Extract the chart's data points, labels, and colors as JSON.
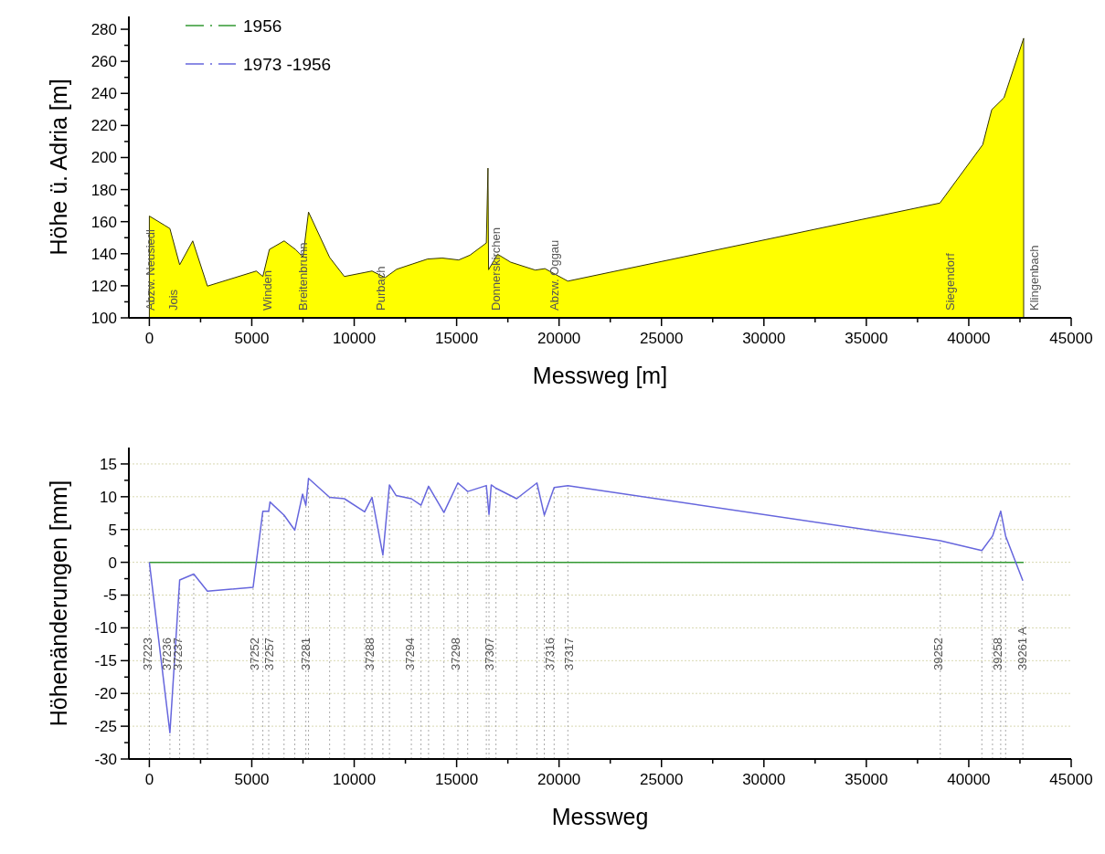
{
  "chart_data": [
    {
      "type": "area",
      "xlabel": "Messweg [m]",
      "ylabel": "Höhe ü. Adria [m]",
      "x": [
        0,
        762,
        1003,
        1480,
        2118,
        2835,
        5220,
        5540,
        5860,
        6580,
        7130,
        7500,
        7770,
        8800,
        9520,
        10870,
        11510,
        12070,
        12870,
        13580,
        14300,
        15100,
        15650,
        16450,
        16530,
        16560,
        17000,
        17640,
        18840,
        19310,
        19870,
        20430,
        38590,
        40680,
        41120,
        41720,
        42680
      ],
      "series": [
        {
          "color": "#ffff00",
          "values": [
            163.5,
            157.6,
            155.7,
            133.1,
            148,
            119.8,
            129.2,
            125.8,
            142.7,
            148,
            142.7,
            138,
            166,
            137.7,
            125.8,
            129.2,
            125.1,
            130.3,
            133.7,
            136.7,
            137.3,
            136.1,
            139.1,
            146.7,
            193.4,
            130,
            139.7,
            134.7,
            129.8,
            130.7,
            126.8,
            122.9,
            171.6,
            208,
            229.8,
            237.3,
            274.4
          ]
        }
      ],
      "xlim": [
        -1000,
        45000
      ],
      "ylim": [
        100,
        288
      ],
      "xticks": [
        0,
        {
          "value": 2500,
          "label": null
        },
        5000,
        {
          "value": 7500,
          "label": null
        },
        10000,
        {
          "value": 12500,
          "label": null
        },
        15000,
        {
          "value": 17500,
          "label": null
        },
        20000,
        {
          "value": 22500,
          "label": null
        },
        25000,
        {
          "value": 27500,
          "label": null
        },
        30000,
        {
          "value": 32500,
          "label": null
        },
        35000,
        {
          "value": 37500,
          "label": null
        },
        40000,
        {
          "value": 42500,
          "label": null
        },
        45000
      ],
      "yticks": [
        100,
        {
          "value": 110,
          "label": null
        },
        120,
        {
          "value": 130,
          "label": null
        },
        140,
        {
          "value": 150,
          "label": null
        },
        160,
        {
          "value": 170,
          "label": null
        },
        180,
        {
          "value": 190,
          "label": null
        },
        200,
        {
          "value": 210,
          "label": null
        },
        220,
        {
          "value": 230,
          "label": null
        },
        240,
        {
          "value": 250,
          "label": null
        },
        260,
        {
          "value": 270,
          "label": null
        },
        280
      ],
      "annotations": [
        "Abzw. Neusiedl",
        "Jois",
        "Winden",
        "Breitenbrunn",
        "Purbach",
        "Donnerskirchen",
        "Abzw. Oggau",
        "Siegendorf",
        "Klingenbach"
      ]
    },
    {
      "type": "line",
      "xlabel": "Messweg",
      "ylabel": "Höhenänderungen [mm]",
      "legend": "top left",
      "grid": "y",
      "line_style": "solid",
      "series": [
        {
          "name": "1956",
          "color": "#339933",
          "x": [
            0,
            42680
          ],
          "values": [
            0,
            0
          ]
        },
        {
          "name": "1973 -1956",
          "color": "#6666dd",
          "x": [
            0,
            1003,
            1480,
            2167,
            2835,
            5065,
            5540,
            5827,
            5890,
            6575,
            7100,
            7480,
            7640,
            7770,
            8800,
            9520,
            10510,
            10870,
            11400,
            11720,
            12040,
            12790,
            13260,
            13630,
            14380,
            15060,
            15540,
            16450,
            16580,
            16690,
            16920,
            17930,
            18920,
            19280,
            19760,
            20430,
            38610,
            40640,
            41160,
            41560,
            41800,
            42640
          ],
          "values": [
            0,
            -26,
            -2.7,
            -1.8,
            -4.4,
            -3.8,
            7.8,
            7.8,
            9.2,
            7.2,
            4.9,
            10.4,
            8.7,
            12.8,
            9.9,
            9.7,
            7.7,
            9.9,
            1.1,
            11.8,
            10.2,
            9.7,
            8.7,
            11.6,
            7.6,
            12.1,
            10.8,
            11.7,
            7.3,
            11.8,
            11.3,
            9.7,
            12.1,
            7.2,
            11.4,
            11.7,
            3.3,
            1.8,
            4,
            7.8,
            4,
            -2.8
          ]
        }
      ],
      "xlim": [
        -1000,
        45000
      ],
      "ylim": [
        -30,
        17.5
      ],
      "xticks": [
        0,
        {
          "value": 2500,
          "label": null
        },
        5000,
        {
          "value": 7500,
          "label": null
        },
        10000,
        {
          "value": 12500,
          "label": null
        },
        15000,
        {
          "value": 17500,
          "label": null
        },
        20000,
        {
          "value": 22500,
          "label": null
        },
        25000,
        {
          "value": 27500,
          "label": null
        },
        30000,
        {
          "value": 32500,
          "label": null
        },
        35000,
        {
          "value": 37500,
          "label": null
        },
        40000,
        {
          "value": 42500,
          "label": null
        },
        45000
      ],
      "yticks": [
        -30,
        {
          "value": -27.5,
          "label": null
        },
        -25,
        {
          "value": -22.5,
          "label": null
        },
        -20,
        {
          "value": -17.5,
          "label": null
        },
        -15,
        {
          "value": -12.5,
          "label": null
        },
        -10,
        {
          "value": -7.5,
          "label": null
        },
        -5,
        {
          "value": -2.5,
          "label": null
        },
        0,
        {
          "value": 2.5,
          "label": null
        },
        5,
        {
          "value": 7.5,
          "label": null
        },
        10,
        {
          "value": 12.5,
          "label": null
        },
        15
      ],
      "ref_lines": [
        {
          "axis": "x",
          "value": 0,
          "color": "#aaaaaa",
          "line_style": "dotted"
        },
        {
          "axis": "x",
          "value": 1003,
          "color": "#aaaaaa",
          "line_style": "dotted"
        },
        {
          "axis": "x",
          "value": 1480,
          "color": "#aaaaaa",
          "line_style": "dotted"
        },
        {
          "axis": "x",
          "value": 2167,
          "color": "#aaaaaa",
          "line_style": "dotted"
        },
        {
          "axis": "x",
          "value": 2835,
          "color": "#aaaaaa",
          "line_style": "dotted"
        },
        {
          "axis": "x",
          "value": 5065,
          "color": "#aaaaaa",
          "line_style": "dotted"
        },
        {
          "axis": "x",
          "value": 5540,
          "color": "#aaaaaa",
          "line_style": "dotted"
        },
        {
          "axis": "x",
          "value": 5827,
          "color": "#aaaaaa",
          "line_style": "dotted"
        },
        {
          "axis": "x",
          "value": 6575,
          "color": "#aaaaaa",
          "line_style": "dotted"
        },
        {
          "axis": "x",
          "value": 7100,
          "color": "#aaaaaa",
          "line_style": "dotted"
        },
        {
          "axis": "x",
          "value": 7640,
          "color": "#aaaaaa",
          "line_style": "dotted"
        },
        {
          "axis": "x",
          "value": 7770,
          "color": "#aaaaaa",
          "line_style": "dotted"
        },
        {
          "axis": "x",
          "value": 8800,
          "color": "#aaaaaa",
          "line_style": "dotted"
        },
        {
          "axis": "x",
          "value": 9520,
          "color": "#aaaaaa",
          "line_style": "dotted"
        },
        {
          "axis": "x",
          "value": 10510,
          "color": "#aaaaaa",
          "line_style": "dotted"
        },
        {
          "axis": "x",
          "value": 10870,
          "color": "#aaaaaa",
          "line_style": "dotted"
        },
        {
          "axis": "x",
          "value": 11400,
          "color": "#aaaaaa",
          "line_style": "dotted"
        },
        {
          "axis": "x",
          "value": 11720,
          "color": "#aaaaaa",
          "line_style": "dotted"
        },
        {
          "axis": "x",
          "value": 12790,
          "color": "#aaaaaa",
          "line_style": "dotted"
        },
        {
          "axis": "x",
          "value": 13260,
          "color": "#aaaaaa",
          "line_style": "dotted"
        },
        {
          "axis": "x",
          "value": 13630,
          "color": "#aaaaaa",
          "line_style": "dotted"
        },
        {
          "axis": "x",
          "value": 14380,
          "color": "#aaaaaa",
          "line_style": "dotted"
        },
        {
          "axis": "x",
          "value": 15060,
          "color": "#aaaaaa",
          "line_style": "dotted"
        },
        {
          "axis": "x",
          "value": 15540,
          "color": "#aaaaaa",
          "line_style": "dotted"
        },
        {
          "axis": "x",
          "value": 16450,
          "color": "#aaaaaa",
          "line_style": "dotted"
        },
        {
          "axis": "x",
          "value": 16580,
          "color": "#aaaaaa",
          "line_style": "dotted"
        },
        {
          "axis": "x",
          "value": 16920,
          "color": "#aaaaaa",
          "line_style": "dotted"
        },
        {
          "axis": "x",
          "value": 17930,
          "color": "#aaaaaa",
          "line_style": "dotted"
        },
        {
          "axis": "x",
          "value": 18920,
          "color": "#aaaaaa",
          "line_style": "dotted"
        },
        {
          "axis": "x",
          "value": 19280,
          "color": "#aaaaaa",
          "line_style": "dotted"
        },
        {
          "axis": "x",
          "value": 19760,
          "color": "#aaaaaa",
          "line_style": "dotted"
        },
        {
          "axis": "x",
          "value": 20430,
          "color": "#aaaaaa",
          "line_style": "dotted"
        },
        {
          "axis": "x",
          "value": 38610,
          "color": "#aaaaaa",
          "line_style": "dotted"
        },
        {
          "axis": "x",
          "value": 40640,
          "color": "#aaaaaa",
          "line_style": "dotted"
        },
        {
          "axis": "x",
          "value": 41160,
          "color": "#aaaaaa",
          "line_style": "dotted"
        },
        {
          "axis": "x",
          "value": 41560,
          "color": "#aaaaaa",
          "line_style": "dotted"
        },
        {
          "axis": "x",
          "value": 41800,
          "color": "#aaaaaa",
          "line_style": "dotted"
        },
        {
          "axis": "x",
          "value": 42640,
          "color": "#aaaaaa",
          "line_style": "dotted"
        }
      ],
      "annotations": [
        {
          "text": "37223",
          "x": -80,
          "y": -16.5
        },
        {
          "text": "37236",
          "x": 840,
          "y": -16.5
        },
        {
          "text": "37237",
          "x": 1400,
          "y": -16.5
        },
        {
          "text": "37252",
          "x": 5140,
          "y": -16.5
        },
        {
          "text": "37257",
          "x": 5860,
          "y": -16.5
        },
        {
          "text": "37281",
          "x": 7640,
          "y": -16.5
        },
        {
          "text": "37288",
          "x": 10760,
          "y": -16.5
        },
        {
          "text": "37294",
          "x": 12700,
          "y": -16.5
        },
        {
          "text": "37298",
          "x": 14930,
          "y": -16.5
        },
        {
          "text": "37307",
          "x": 16610,
          "y": -16.5
        },
        {
          "text": "37316",
          "x": 19550,
          "y": -16.5
        },
        {
          "text": "37317",
          "x": 20480,
          "y": -16.5
        },
        {
          "text": "39252",
          "x": 38500,
          "y": -16.5
        },
        {
          "text": "39258",
          "x": 41420,
          "y": -16.5
        },
        {
          "text": "39261 A",
          "x": 42610,
          "y": -16.5
        }
      ]
    }
  ]
}
